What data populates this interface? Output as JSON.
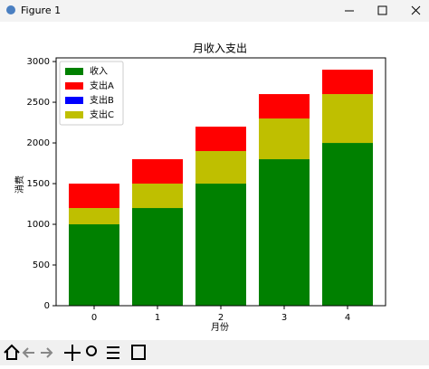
{
  "window_title": "Figure 1",
  "chart_data": {
    "type": "bar",
    "title": "月收入支出",
    "x_label": "月份",
    "y_label": "消费",
    "x": [
      0,
      1,
      2,
      3,
      4
    ],
    "xlim": [
      -0.6,
      4.6
    ],
    "xticks": [
      0,
      1,
      2,
      3,
      4
    ],
    "ylim": [
      0,
      3045
    ],
    "yticks": [
      0,
      500,
      1000,
      1500,
      2000,
      2500,
      3000
    ],
    "stacked": true,
    "legend": "upper left",
    "series": [
      {
        "name": "收入",
        "color": "#008000",
        "values": [
          1000,
          1200,
          1500,
          1800,
          2000
        ]
      },
      {
        "name": "支出A",
        "color": "#ff0000",
        "values": [
          300,
          300,
          300,
          300,
          300
        ]
      },
      {
        "name": "支出B",
        "color": "#0000ff",
        "values": [
          0,
          0,
          0,
          0,
          0
        ]
      },
      {
        "name": "支出C",
        "color": "#bfbf00",
        "values": [
          200,
          300,
          400,
          500,
          600
        ]
      }
    ]
  }
}
